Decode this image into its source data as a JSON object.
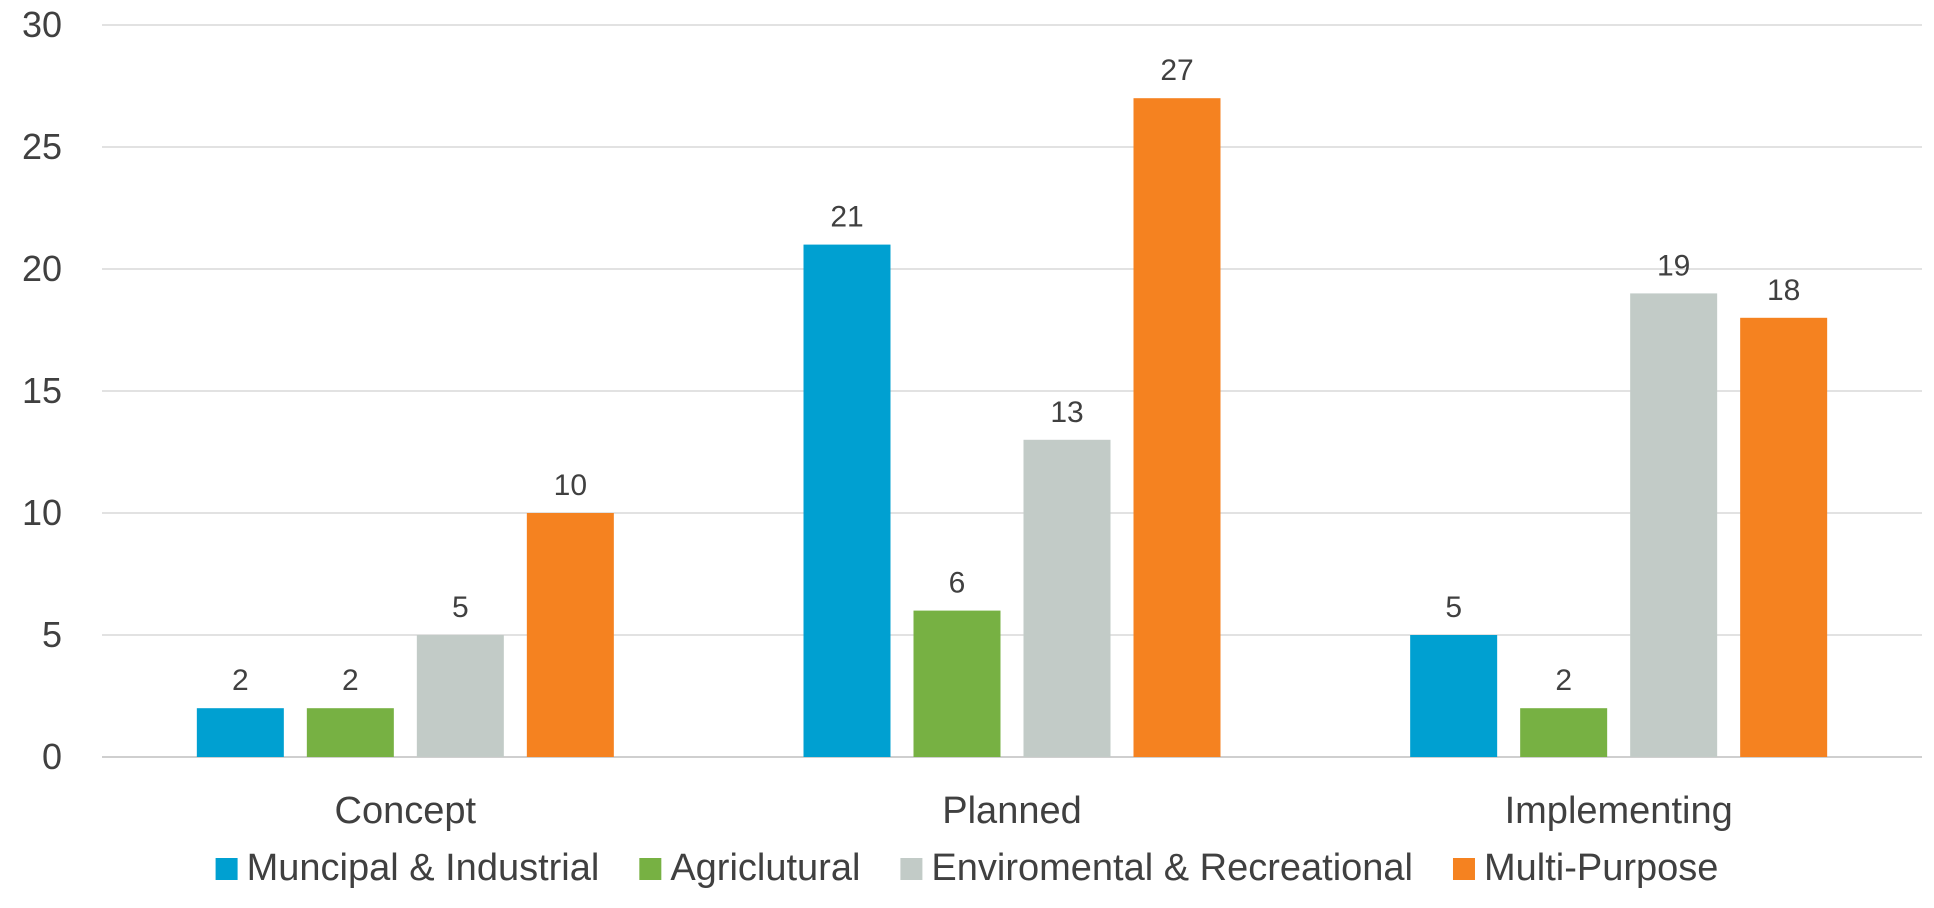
{
  "chart_data": {
    "type": "bar",
    "title": "",
    "xlabel": "",
    "ylabel": "",
    "categories": [
      "Concept",
      "Planned",
      "Implementing"
    ],
    "series": [
      {
        "name": "Muncipal & Industrial",
        "color": "#00a0d1",
        "values": [
          2,
          21,
          5
        ]
      },
      {
        "name": "Agriclutural",
        "color": "#77b143",
        "values": [
          2,
          6,
          2
        ]
      },
      {
        "name": "Enviromental & Recreational",
        "color": "#c2cbc7",
        "values": [
          5,
          13,
          19
        ]
      },
      {
        "name": "Multi-Purpose",
        "color": "#f58220",
        "values": [
          10,
          27,
          18
        ]
      }
    ],
    "ylim": [
      0,
      30
    ],
    "yticks": [
      0,
      5,
      10,
      15,
      20,
      25,
      30
    ],
    "grid": true,
    "data_labels": true,
    "legend_position": "bottom"
  }
}
